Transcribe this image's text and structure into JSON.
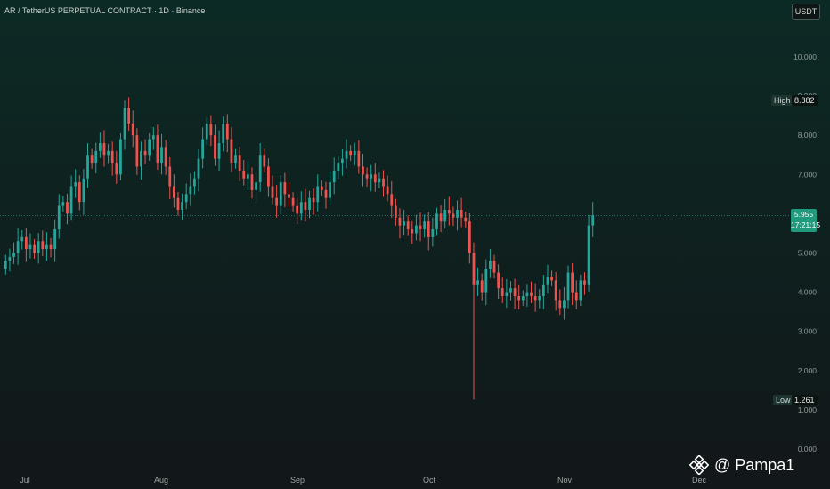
{
  "header": {
    "title": "AR / TetherUS PERPETUAL CONTRACT · 1D · Binance",
    "currency_button": "USDT"
  },
  "markers": {
    "high_label": "High",
    "high_value": "8.882",
    "low_label": "Low",
    "low_value": "1.261",
    "last_price": "5.955",
    "countdown": "17:21:15"
  },
  "watermark": {
    "text": "@ Pampa1",
    "icon": "binance-icon"
  },
  "colors": {
    "up": "#26a69a",
    "down": "#ef5350",
    "price_line": "#26a69a"
  },
  "chart_data": {
    "type": "candlestick",
    "y_axis": {
      "ticks": [
        "10.000",
        "9.000",
        "8.000",
        "7.000",
        "6.000",
        "5.000",
        "4.000",
        "3.000",
        "2.000",
        "1.000",
        "0.000"
      ],
      "ylim": [
        0,
        10.5
      ]
    },
    "x_axis": {
      "ticks": [
        "Jul",
        "Aug",
        "Sep",
        "Oct",
        "Nov",
        "Dec"
      ]
    },
    "last_price": 5.955,
    "closes": [
      4.8,
      4.9,
      5.0,
      5.3,
      5.4,
      5.1,
      5.2,
      5.0,
      5.3,
      5.1,
      5.2,
      5.1,
      5.6,
      6.2,
      6.3,
      6.0,
      6.7,
      6.8,
      6.3,
      6.9,
      7.5,
      7.3,
      7.6,
      7.8,
      7.5,
      7.6,
      7.3,
      7.0,
      7.9,
      8.7,
      8.3,
      8.0,
      7.2,
      7.6,
      7.5,
      7.9,
      8.0,
      7.3,
      7.7,
      7.2,
      6.7,
      6.4,
      6.1,
      6.3,
      6.5,
      6.7,
      6.9,
      7.4,
      7.9,
      8.3,
      8.0,
      7.4,
      7.8,
      8.3,
      7.9,
      7.3,
      7.5,
      7.1,
      6.9,
      7.0,
      6.6,
      6.8,
      7.5,
      7.2,
      6.7,
      6.4,
      6.2,
      6.8,
      6.5,
      6.4,
      6.2,
      6.0,
      6.3,
      6.1,
      6.4,
      6.3,
      6.7,
      6.6,
      6.4,
      6.8,
      7.1,
      7.3,
      7.4,
      7.6,
      7.5,
      7.6,
      7.2,
      7.0,
      6.9,
      7.0,
      6.8,
      6.9,
      6.7,
      6.5,
      6.2,
      5.9,
      5.7,
      5.8,
      5.6,
      5.5,
      5.7,
      5.6,
      5.8,
      5.4,
      5.6,
      6.0,
      5.8,
      6.1,
      6.0,
      5.9,
      6.1,
      5.9,
      5.8,
      5.0,
      4.2,
      4.3,
      4.0,
      4.6,
      4.8,
      4.5,
      4.1,
      3.9,
      4.0,
      4.1,
      3.9,
      3.8,
      3.9,
      4.0,
      3.9,
      3.8,
      3.9,
      4.2,
      4.4,
      4.3,
      3.8,
      3.6,
      3.8,
      4.5,
      4.0,
      3.8,
      4.3,
      4.2,
      5.7,
      5.96
    ],
    "opens": [
      4.6,
      4.8,
      4.9,
      5.0,
      5.3,
      5.4,
      5.1,
      5.2,
      5.0,
      5.3,
      5.1,
      5.2,
      5.1,
      5.6,
      6.2,
      6.3,
      6.0,
      6.7,
      6.8,
      6.3,
      6.9,
      7.5,
      7.3,
      7.6,
      7.8,
      7.5,
      7.6,
      7.3,
      7.0,
      7.9,
      8.7,
      8.3,
      8.0,
      7.2,
      7.6,
      7.5,
      7.9,
      8.0,
      7.3,
      7.7,
      7.2,
      6.7,
      6.4,
      6.1,
      6.3,
      6.5,
      6.7,
      6.9,
      7.4,
      7.9,
      8.3,
      8.0,
      7.4,
      7.8,
      8.3,
      7.9,
      7.3,
      7.5,
      7.1,
      6.9,
      7.0,
      6.6,
      6.8,
      7.5,
      7.2,
      6.7,
      6.4,
      6.2,
      6.8,
      6.5,
      6.4,
      6.2,
      6.0,
      6.3,
      6.1,
      6.4,
      6.3,
      6.7,
      6.6,
      6.4,
      6.8,
      7.1,
      7.3,
      7.4,
      7.6,
      7.5,
      7.6,
      7.2,
      7.0,
      6.9,
      7.0,
      6.8,
      6.9,
      6.7,
      6.5,
      6.2,
      5.9,
      5.7,
      5.8,
      5.6,
      5.5,
      5.7,
      5.6,
      5.8,
      5.4,
      5.6,
      6.0,
      5.8,
      6.1,
      6.0,
      5.9,
      6.1,
      5.9,
      5.8,
      5.0,
      4.2,
      4.3,
      4.0,
      4.6,
      4.8,
      4.5,
      4.1,
      3.9,
      4.0,
      4.1,
      3.9,
      3.8,
      3.9,
      4.0,
      3.9,
      3.8,
      3.9,
      4.2,
      4.4,
      4.3,
      3.8,
      3.6,
      3.8,
      4.5,
      4.0,
      3.8,
      4.3,
      4.2,
      5.7
    ],
    "high": 8.882,
    "low": 1.261,
    "low_candle_index": 114
  }
}
